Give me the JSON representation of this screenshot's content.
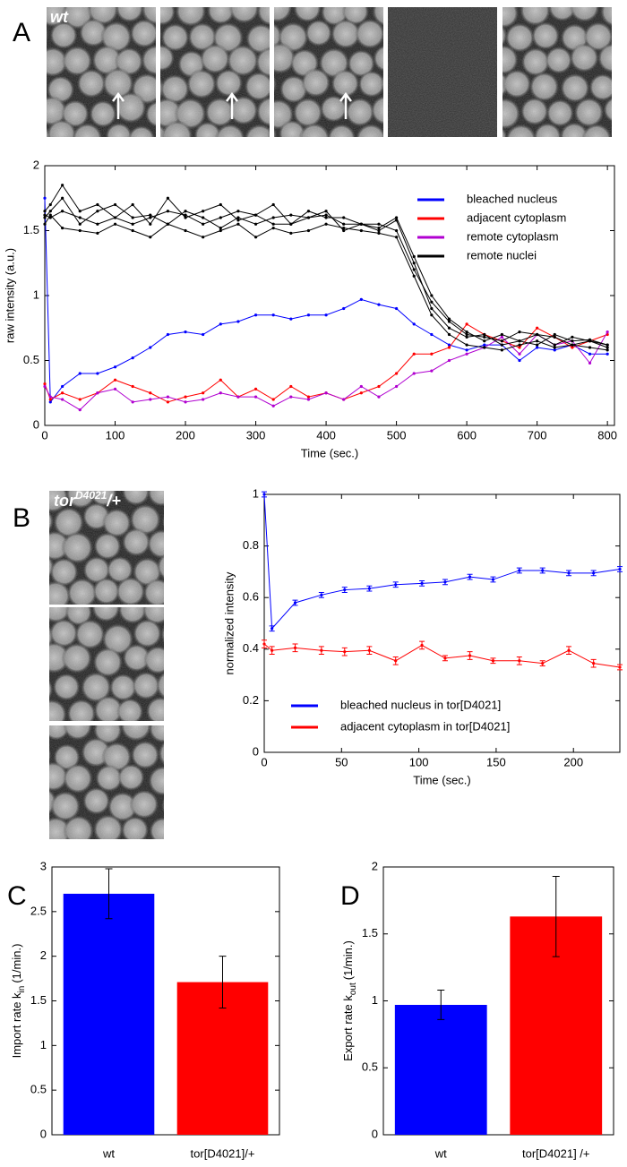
{
  "micrographs": {
    "panel": "A",
    "a_label": "wt",
    "b_label": "tor",
    "b_label_sup": "D4021",
    "b_label_after": "/+"
  },
  "chart_data": [
    {
      "type": "line",
      "panel": "A",
      "xlabel": "Time (sec.)",
      "ylabel": "raw intensity (a.u.)",
      "xlim": [
        0,
        810
      ],
      "xticks": [
        0,
        100,
        200,
        300,
        400,
        500,
        600,
        700,
        800
      ],
      "ylim": [
        0,
        2
      ],
      "yticks": [
        0,
        0.5,
        1,
        1.5,
        2
      ],
      "legend": "upper right",
      "x": [
        0,
        8,
        25,
        50,
        75,
        100,
        125,
        150,
        175,
        200,
        225,
        250,
        275,
        300,
        325,
        350,
        375,
        400,
        425,
        450,
        475,
        500,
        525,
        550,
        575,
        600,
        625,
        650,
        675,
        700,
        725,
        750,
        775,
        800
      ],
      "series": [
        {
          "name": "bleached nucleus",
          "color": "#0000ff",
          "values": [
            1.75,
            0.18,
            0.3,
            0.4,
            0.4,
            0.45,
            0.52,
            0.6,
            0.7,
            0.72,
            0.7,
            0.78,
            0.8,
            0.85,
            0.85,
            0.82,
            0.85,
            0.85,
            0.9,
            0.97,
            0.93,
            0.9,
            0.78,
            0.7,
            0.62,
            0.58,
            0.62,
            0.62,
            0.5,
            0.6,
            0.58,
            0.62,
            0.55,
            0.55
          ]
        },
        {
          "name": "adjacent cytoplasm",
          "color": "#ff0000",
          "values": [
            0.32,
            0.2,
            0.25,
            0.2,
            0.25,
            0.35,
            0.3,
            0.25,
            0.18,
            0.22,
            0.25,
            0.35,
            0.22,
            0.28,
            0.2,
            0.3,
            0.22,
            0.25,
            0.2,
            0.25,
            0.3,
            0.4,
            0.55,
            0.55,
            0.6,
            0.78,
            0.7,
            0.65,
            0.6,
            0.75,
            0.68,
            0.6,
            0.65,
            0.7
          ]
        },
        {
          "name": "remote cytoplasm",
          "color": "#b000d0",
          "values": [
            0.3,
            0.22,
            0.2,
            0.12,
            0.25,
            0.28,
            0.18,
            0.2,
            0.22,
            0.18,
            0.2,
            0.25,
            0.22,
            0.22,
            0.15,
            0.22,
            0.2,
            0.25,
            0.2,
            0.3,
            0.22,
            0.3,
            0.4,
            0.42,
            0.5,
            0.55,
            0.6,
            0.68,
            0.55,
            0.7,
            0.62,
            0.65,
            0.48,
            0.72
          ]
        },
        {
          "name": "remote nuclei",
          "color": "#000000",
          "values": [
            1.65,
            1.7,
            1.85,
            1.65,
            1.7,
            1.6,
            1.7,
            1.55,
            1.75,
            1.6,
            1.65,
            1.7,
            1.58,
            1.62,
            1.7,
            1.55,
            1.65,
            1.6,
            1.6,
            1.55,
            1.55,
            1.5,
            1.2,
            0.95,
            0.8,
            0.7,
            0.68,
            0.65,
            0.72,
            0.7,
            0.62,
            0.68,
            0.65,
            0.6
          ]
        },
        {
          "color": "#000000",
          "values": [
            1.6,
            1.65,
            1.75,
            1.55,
            1.65,
            1.7,
            1.6,
            1.62,
            1.55,
            1.65,
            1.6,
            1.52,
            1.6,
            1.55,
            1.6,
            1.62,
            1.6,
            1.65,
            1.5,
            1.55,
            1.52,
            1.6,
            1.3,
            1.0,
            0.82,
            0.72,
            0.65,
            0.7,
            0.65,
            0.7,
            0.68,
            0.62,
            0.65,
            0.62
          ]
        },
        {
          "color": "#000000",
          "values": [
            1.62,
            1.6,
            1.65,
            1.6,
            1.55,
            1.6,
            1.55,
            1.6,
            1.65,
            1.62,
            1.55,
            1.6,
            1.65,
            1.62,
            1.55,
            1.55,
            1.6,
            1.62,
            1.55,
            1.55,
            1.5,
            1.58,
            1.25,
            0.9,
            0.75,
            0.68,
            0.7,
            0.62,
            0.65,
            0.62,
            0.7,
            0.65,
            0.66,
            0.62
          ]
        },
        {
          "color": "#000000",
          "values": [
            1.55,
            1.62,
            1.52,
            1.5,
            1.48,
            1.55,
            1.5,
            1.45,
            1.55,
            1.5,
            1.45,
            1.5,
            1.55,
            1.45,
            1.52,
            1.48,
            1.5,
            1.55,
            1.52,
            1.5,
            1.48,
            1.45,
            1.15,
            0.85,
            0.7,
            0.62,
            0.6,
            0.58,
            0.62,
            0.65,
            0.6,
            0.62,
            0.6,
            0.58
          ]
        }
      ]
    },
    {
      "type": "line",
      "panel": "B",
      "xlabel": "Time (sec.)",
      "ylabel": "normalized intensity",
      "xlim": [
        0,
        230
      ],
      "xticks": [
        0,
        50,
        100,
        150,
        200
      ],
      "ylim": [
        0,
        1
      ],
      "yticks": [
        0,
        0.2,
        0.4,
        0.6,
        0.8,
        1
      ],
      "legend": "lower left",
      "x": [
        0,
        5,
        20,
        37,
        52,
        68,
        85,
        102,
        117,
        133,
        148,
        165,
        180,
        197,
        213,
        230
      ],
      "series": [
        {
          "name": "bleached nucleus in tor[D4021]",
          "color": "#0000ff",
          "values": [
            1,
            0.48,
            0.58,
            0.61,
            0.63,
            0.635,
            0.65,
            0.655,
            0.66,
            0.68,
            0.67,
            0.705,
            0.705,
            0.695,
            0.695,
            0.71
          ],
          "errors": [
            0.01,
            0.01,
            0.01,
            0.01,
            0.01,
            0.01,
            0.01,
            0.01,
            0.01,
            0.01,
            0.01,
            0.01,
            0.01,
            0.01,
            0.01,
            0.01
          ]
        },
        {
          "name": "adjacent cytoplasm in tor[D4021]",
          "color": "#ff0000",
          "values": [
            0.42,
            0.395,
            0.405,
            0.395,
            0.39,
            0.395,
            0.355,
            0.415,
            0.365,
            0.375,
            0.355,
            0.355,
            0.345,
            0.395,
            0.345,
            0.33
          ],
          "errors": [
            0.015,
            0.015,
            0.015,
            0.015,
            0.015,
            0.015,
            0.015,
            0.015,
            0.01,
            0.015,
            0.01,
            0.015,
            0.01,
            0.015,
            0.015,
            0.01
          ]
        }
      ]
    },
    {
      "type": "bar",
      "panel": "C",
      "ylabel": "Import rate k",
      "ylabel_sub": "in",
      "ylabel_after": "(1/min.)",
      "ylim": [
        0,
        3
      ],
      "yticks": [
        0,
        0.5,
        1,
        1.5,
        2,
        2.5,
        3
      ],
      "categories": [
        "wt",
        "tor[D4021]/+"
      ],
      "values": [
        2.7,
        1.71
      ],
      "errors": [
        0.28,
        0.29
      ],
      "colors": [
        "#0000ff",
        "#ff0000"
      ]
    },
    {
      "type": "bar",
      "panel": "D",
      "ylabel": "Export rate k",
      "ylabel_sub": "out",
      "ylabel_after": "(1/min.)",
      "ylim": [
        0,
        2
      ],
      "yticks": [
        0,
        0.5,
        1,
        1.5,
        2
      ],
      "categories": [
        "wt",
        "tor[D4021] /+"
      ],
      "values": [
        0.97,
        1.63
      ],
      "errors": [
        0.11,
        0.3
      ],
      "colors": [
        "#0000ff",
        "#ff0000"
      ]
    }
  ]
}
